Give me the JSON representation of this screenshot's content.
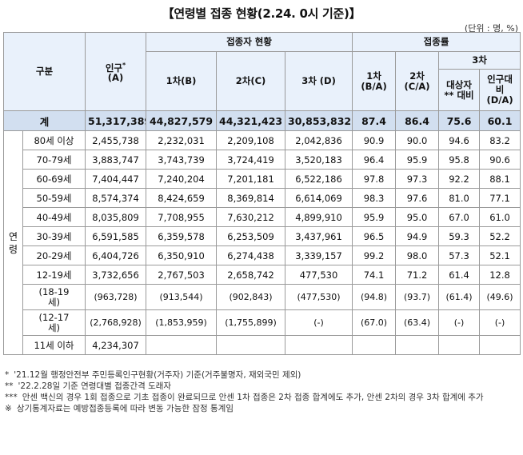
{
  "title": "【연령별 접종 현황(2.24. 0시 기준)】",
  "unit": "(단위 : 명, %)",
  "headers": {
    "category": "구분",
    "population_line1": "인구",
    "population_star": "*",
    "population_line2": "(A)",
    "vaccinated": "접종자 현황",
    "first": "1차(B)",
    "second": "2차(C)",
    "third": "3차 (D)",
    "rate": "접종률",
    "rate_first_line1": "1차",
    "rate_first_line2": "(B/A)",
    "rate_second_line1": "2차",
    "rate_second_line2": "(C/A)",
    "rate_third": "3차",
    "rate_target_line1": "대상자",
    "rate_target_line2": "** 대비",
    "rate_pop_line1": "인구대",
    "rate_pop_line2": "비",
    "rate_pop_line3": "(D/A)"
  },
  "age_label": "연령",
  "total_row": {
    "label": "계",
    "population": "51,317,389",
    "first": "44,827,579",
    "second": "44,321,423",
    "third": "30,853,832",
    "r1": "87.4",
    "r2": "86.4",
    "r3t": "75.6",
    "r3p": "60.1"
  },
  "rows": [
    {
      "label": "80세 이상",
      "population": "2,455,738",
      "first": "2,232,031",
      "second": "2,209,108",
      "third": "2,042,836",
      "r1": "90.9",
      "r2": "90.0",
      "r3t": "94.6",
      "r3p": "83.2"
    },
    {
      "label": "70-79세",
      "population": "3,883,747",
      "first": "3,743,739",
      "second": "3,724,419",
      "third": "3,520,183",
      "r1": "96.4",
      "r2": "95.9",
      "r3t": "95.8",
      "r3p": "90.6"
    },
    {
      "label": "60-69세",
      "population": "7,404,447",
      "first": "7,240,204",
      "second": "7,201,181",
      "third": "6,522,186",
      "r1": "97.8",
      "r2": "97.3",
      "r3t": "92.2",
      "r3p": "88.1"
    },
    {
      "label": "50-59세",
      "population": "8,574,374",
      "first": "8,424,659",
      "second": "8,369,814",
      "third": "6,614,069",
      "r1": "98.3",
      "r2": "97.6",
      "r3t": "81.0",
      "r3p": "77.1"
    },
    {
      "label": "40-49세",
      "population": "8,035,809",
      "first": "7,708,955",
      "second": "7,630,212",
      "third": "4,899,910",
      "r1": "95.9",
      "r2": "95.0",
      "r3t": "67.0",
      "r3p": "61.0"
    },
    {
      "label": "30-39세",
      "population": "6,591,585",
      "first": "6,359,578",
      "second": "6,253,509",
      "third": "3,437,961",
      "r1": "96.5",
      "r2": "94.9",
      "r3t": "59.3",
      "r3p": "52.2"
    },
    {
      "label": "20-29세",
      "population": "6,404,726",
      "first": "6,350,910",
      "second": "6,274,438",
      "third": "3,339,157",
      "r1": "99.2",
      "r2": "98.0",
      "r3t": "57.3",
      "r3p": "52.1"
    },
    {
      "label": "12-19세",
      "population": "3,732,656",
      "first": "2,767,503",
      "second": "2,658,742",
      "third": "477,530",
      "r1": "74.1",
      "r2": "71.2",
      "r3t": "61.4",
      "r3p": "12.8"
    }
  ],
  "sub_rows": [
    {
      "label_line1": "(18-19",
      "label_line2": "세)",
      "population": "(963,728)",
      "first": "(913,544)",
      "second": "(902,843)",
      "third": "(477,530)",
      "r1": "(94.8)",
      "r2": "(93.7)",
      "r3t": "(61.4)",
      "r3p": "(49.6)"
    },
    {
      "label_line1": "(12-17",
      "label_line2": "세)",
      "population": "(2,768,928)",
      "first": "(1,853,959)",
      "second": "(1,755,899)",
      "third": "(-)",
      "r1": "(67.0)",
      "r2": "(63.4)",
      "r3t": "(-)",
      "r3p": "(-)"
    }
  ],
  "under11": {
    "label": "11세 이하",
    "population": "4,234,307"
  },
  "notes": [
    {
      "mark": "*",
      "text": "'21.12월 행정안전부 주민등록인구현황(거주자) 기준(거주불명자, 재외국민 제외)"
    },
    {
      "mark": "**",
      "text": "'22.2.28일 기준 연령대별 접종간격 도래자"
    },
    {
      "mark": "***",
      "text": "안센 백신의 경우 1회 접종으로 기초 접종이 완료되므로 안센 1차 접종은 2차 접종 합계에도 추가, 안센 2차의 경우 3차 합계에 추가"
    },
    {
      "mark": "※",
      "text": "상기통계자료는 예방접종등록에 따라 변동 가능한 잠정 통계임"
    }
  ]
}
